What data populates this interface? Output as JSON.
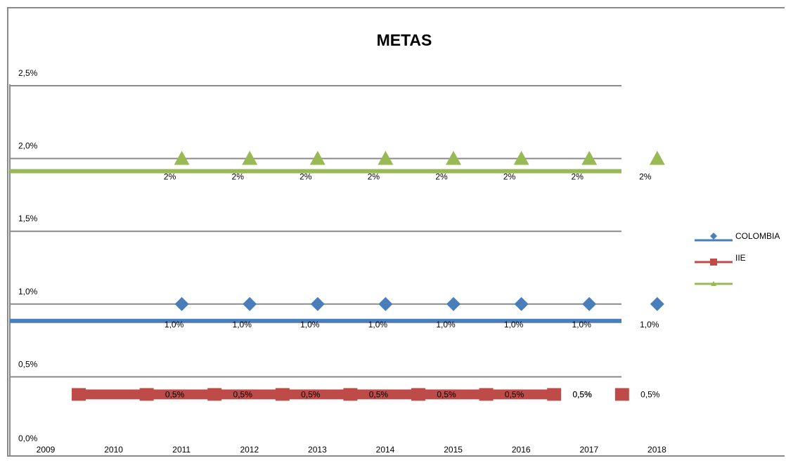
{
  "chart_data": {
    "type": "line",
    "title": "METAS",
    "xlabel": "",
    "ylabel": "",
    "x": [
      "2009",
      "2010",
      "2011",
      "2012",
      "2013",
      "2014",
      "2015",
      "2016",
      "2017",
      "2018"
    ],
    "y_ticks": [
      "0,0%",
      "0,5%",
      "1,0%",
      "1,5%",
      "2,0%",
      "2,5%"
    ],
    "ylim": [
      0,
      2.5
    ],
    "grid": true,
    "legend_position": "right",
    "series": [
      {
        "name": "COLOMBIA",
        "color": "#4a7ebb",
        "marker": "diamond",
        "x": [
          "2010",
          "2011",
          "2012",
          "2013",
          "2014",
          "2015",
          "2016",
          "2017"
        ],
        "values": [
          1.0,
          1.0,
          1.0,
          1.0,
          1.0,
          1.0,
          1.0,
          1.0
        ],
        "labels": [
          "1,0%",
          "1,0%",
          "1,0%",
          "1,0%",
          "1,0%",
          "1,0%",
          "1,0%",
          "1,0%"
        ]
      },
      {
        "name": "IIE",
        "color": "#be4b48",
        "marker": "square",
        "x": [
          "2010",
          "2011",
          "2012",
          "2013",
          "2014",
          "2015",
          "2016",
          "2017"
        ],
        "values": [
          0.5,
          0.5,
          0.5,
          0.5,
          0.5,
          0.5,
          0.5,
          0.5
        ],
        "labels": [
          "0,5%",
          "0,5%",
          "0,5%",
          "0,5%",
          "0,5%",
          "0,5%",
          "0,5%",
          "0,5%"
        ]
      },
      {
        "color": "#98b954",
        "marker": "triangle",
        "x": [
          "2010",
          "2011",
          "2012",
          "2013",
          "2014",
          "2015",
          "2016",
          "2017"
        ],
        "values": [
          2,
          2,
          2,
          2,
          2,
          2,
          2,
          2
        ],
        "labels": [
          "2%",
          "2%",
          "2%",
          "2%",
          "2%",
          "2%",
          "2%",
          "2%"
        ]
      }
    ]
  }
}
